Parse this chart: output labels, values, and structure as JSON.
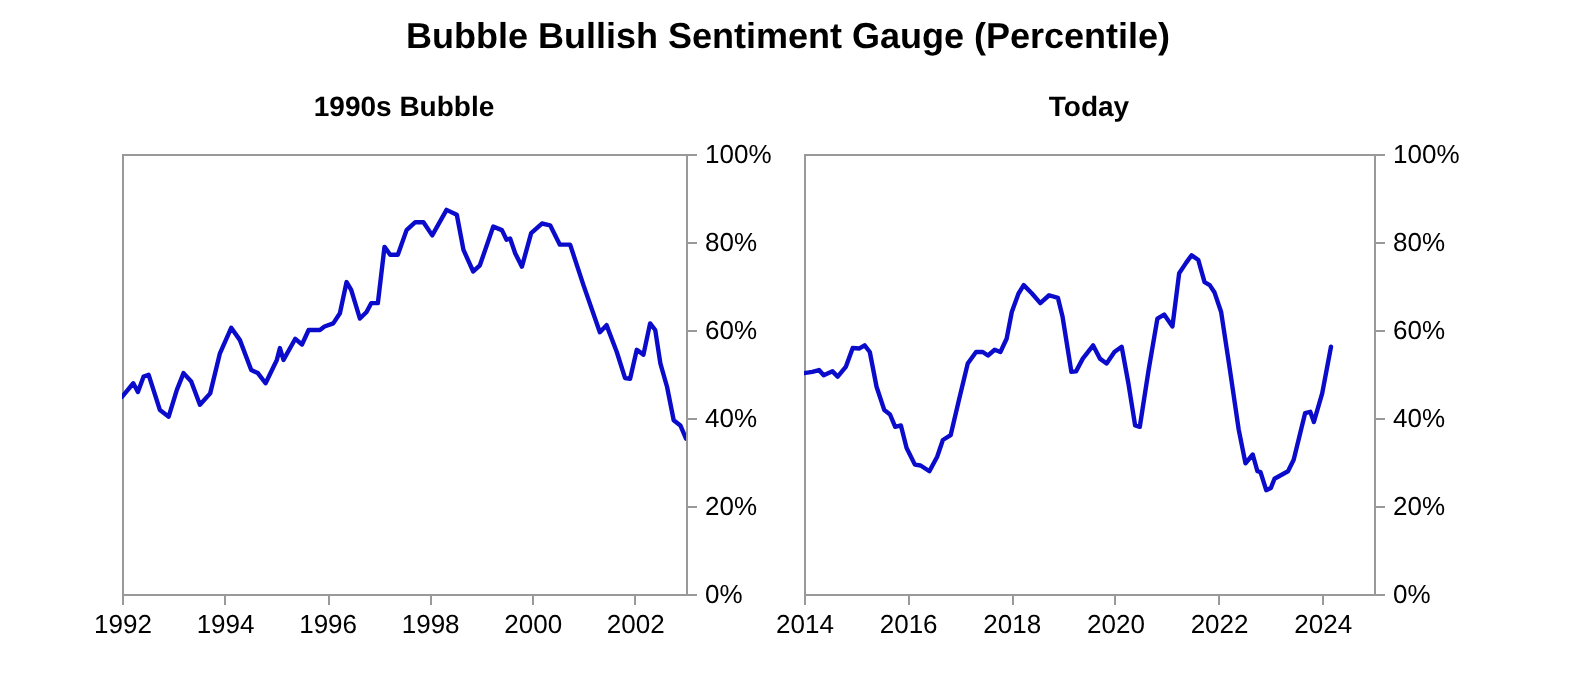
{
  "chart_data": [
    {
      "type": "line",
      "title": "Bubble Bullish Sentiment Gauge (Percentile)",
      "subtitle": "1990s Bubble",
      "color": "#0b0bcc",
      "x": [
        1992.0,
        1992.22,
        1992.31,
        1992.42,
        1992.52,
        1992.74,
        1992.91,
        1993.07,
        1993.2,
        1993.35,
        1993.52,
        1993.72,
        1993.91,
        1994.13,
        1994.3,
        1994.52,
        1994.65,
        1994.8,
        1995.02,
        1995.08,
        1995.15,
        1995.38,
        1995.51,
        1995.64,
        1995.86,
        1995.95,
        1996.12,
        1996.25,
        1996.38,
        1996.47,
        1996.64,
        1996.77,
        1996.86,
        1996.99,
        1997.12,
        1997.23,
        1997.38,
        1997.55,
        1997.72,
        1997.88,
        1998.05,
        1998.33,
        1998.53,
        1998.66,
        1998.85,
        1998.98,
        1999.24,
        1999.41,
        1999.5,
        1999.57,
        1999.67,
        1999.8,
        1999.98,
        2000.19,
        2000.35,
        2000.54,
        2000.74,
        2001.0,
        2001.32,
        2001.45,
        2001.65,
        2001.81,
        2001.91,
        2002.04,
        2002.17,
        2002.3,
        2002.4,
        2002.5,
        2002.63,
        2002.76,
        2002.89,
        2003.0
      ],
      "values": [
        44.8,
        47.9,
        45.9,
        49.4,
        49.8,
        41.8,
        40.3,
        46.4,
        50.2,
        48.3,
        43.0,
        45.6,
        54.7,
        60.5,
        57.7,
        50.9,
        50.2,
        47.9,
        53.2,
        55.9,
        53.2,
        58.0,
        56.7,
        60.0,
        60.0,
        60.8,
        61.5,
        63.8,
        70.9,
        69.1,
        62.6,
        64.1,
        66.1,
        66.1,
        78.9,
        77.1,
        77.1,
        82.7,
        84.5,
        84.5,
        81.5,
        87.3,
        86.2,
        78.2,
        73.3,
        74.7,
        83.5,
        82.7,
        80.5,
        80.8,
        77.4,
        74.4,
        82.0,
        84.2,
        83.8,
        79.4,
        79.4,
        70.2,
        59.5,
        61.1,
        55.0,
        49.1,
        48.9,
        55.5,
        54.4,
        61.5,
        60.0,
        52.4,
        47.1,
        39.5,
        38.3,
        35.3
      ],
      "xlim": [
        1992,
        2003
      ],
      "xticks": [
        1992,
        1994,
        1996,
        1998,
        2000,
        2002
      ],
      "ylim": [
        0,
        100
      ],
      "yticks": [
        {
          "value": 0,
          "label": "0%"
        },
        {
          "value": 20,
          "label": "20%"
        },
        {
          "value": 40,
          "label": "40%"
        },
        {
          "value": 60,
          "label": "60%"
        },
        {
          "value": 80,
          "label": "80%"
        },
        {
          "value": 100,
          "label": "100%"
        }
      ]
    },
    {
      "type": "line",
      "subtitle": "Today",
      "color": "#0b0bcc",
      "x": [
        2014.0,
        2014.16,
        2014.29,
        2014.38,
        2014.55,
        2014.65,
        2014.81,
        2014.94,
        2015.07,
        2015.17,
        2015.27,
        2015.4,
        2015.55,
        2015.66,
        2015.76,
        2015.87,
        2015.98,
        2016.14,
        2016.25,
        2016.42,
        2016.57,
        2016.68,
        2016.83,
        2016.99,
        2017.16,
        2017.32,
        2017.45,
        2017.55,
        2017.68,
        2017.79,
        2017.91,
        2018.01,
        2018.14,
        2018.24,
        2018.4,
        2018.56,
        2018.73,
        2018.9,
        2018.99,
        2019.16,
        2019.25,
        2019.38,
        2019.58,
        2019.71,
        2019.84,
        2019.99,
        2020.13,
        2020.26,
        2020.39,
        2020.48,
        2020.65,
        2020.82,
        2020.95,
        2021.11,
        2021.24,
        2021.37,
        2021.48,
        2021.61,
        2021.73,
        2021.83,
        2021.92,
        2022.05,
        2022.22,
        2022.39,
        2022.52,
        2022.66,
        2022.75,
        2022.81,
        2022.92,
        2023.01,
        2023.08,
        2023.34,
        2023.45,
        2023.67,
        2023.77,
        2023.84,
        2024.0,
        2024.17
      ],
      "values": [
        50.2,
        50.5,
        50.9,
        49.7,
        50.6,
        49.4,
        51.7,
        55.9,
        55.8,
        56.5,
        55.0,
        47.1,
        41.8,
        40.8,
        38.0,
        38.3,
        33.2,
        29.4,
        29.2,
        27.9,
        31.2,
        35.0,
        36.1,
        44.1,
        52.4,
        55.0,
        55.0,
        54.2,
        55.5,
        55.0,
        58.0,
        64.1,
        68.3,
        70.2,
        68.3,
        66.1,
        67.9,
        67.3,
        63.0,
        50.5,
        50.6,
        53.5,
        56.5,
        53.5,
        52.4,
        55.0,
        56.2,
        47.9,
        38.3,
        38.0,
        50.9,
        62.6,
        63.5,
        60.8,
        72.9,
        75.2,
        77.0,
        75.9,
        70.9,
        70.2,
        68.6,
        64.1,
        50.9,
        37.3,
        29.7,
        31.7,
        27.9,
        27.7,
        23.6,
        24.1,
        26.2,
        27.9,
        30.5,
        41.1,
        41.4,
        39.1,
        45.6,
        56.2
      ],
      "xlim": [
        2014,
        2025
      ],
      "xticks": [
        2014,
        2016,
        2018,
        2020,
        2022,
        2024
      ],
      "ylim": [
        0,
        100
      ],
      "yticks": [
        {
          "value": 0,
          "label": "0%"
        },
        {
          "value": 20,
          "label": "20%"
        },
        {
          "value": 40,
          "label": "40%"
        },
        {
          "value": 60,
          "label": "60%"
        },
        {
          "value": 80,
          "label": "80%"
        },
        {
          "value": 100,
          "label": "100%"
        }
      ]
    }
  ]
}
